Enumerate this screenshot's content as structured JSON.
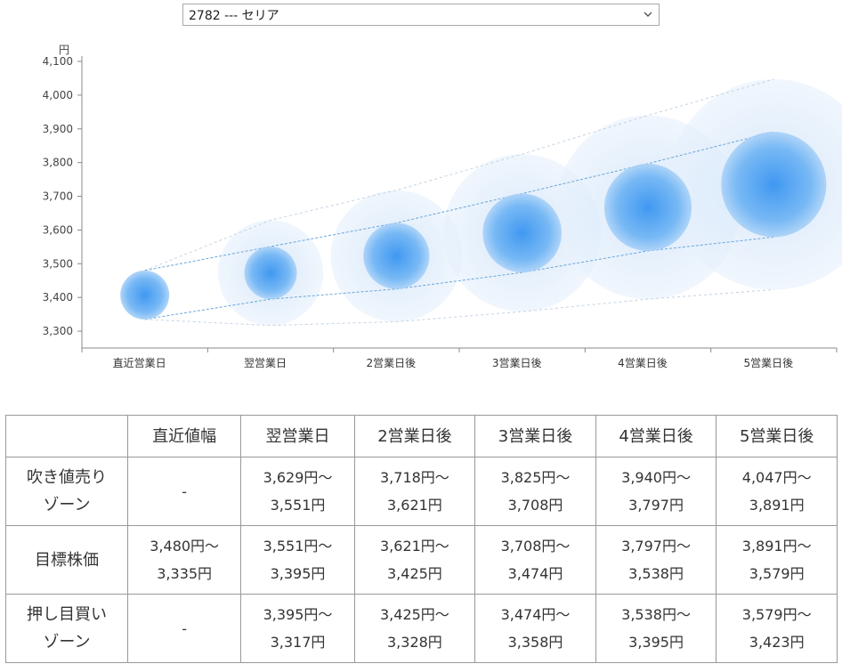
{
  "selector": {
    "value": "2782 --- セリア"
  },
  "chart_data": {
    "type": "bubble",
    "unit": "円",
    "ylim": [
      3250,
      4100
    ],
    "yticks": [
      3300,
      3400,
      3500,
      3600,
      3700,
      3800,
      3900,
      4000,
      4100
    ],
    "ytick_labels": [
      "3,300",
      "3,400",
      "3,500",
      "3,600",
      "3,700",
      "3,800",
      "3,900",
      "4,000",
      "4,100"
    ],
    "categories": [
      "直近営業日",
      "翌営業日",
      "2営業日後",
      "3営業日後",
      "4営業日後",
      "5営業日後"
    ],
    "center": [
      3407,
      3473,
      3523,
      3591,
      3667,
      3735
    ],
    "upper_band": [
      3480,
      3551,
      3621,
      3708,
      3797,
      3891
    ],
    "lower_band": [
      3335,
      3395,
      3425,
      3474,
      3538,
      3579
    ],
    "outer_upper": [
      3480,
      3629,
      3718,
      3825,
      3940,
      4047
    ],
    "outer_lower": [
      3335,
      3317,
      3328,
      3358,
      3395,
      3423
    ],
    "colors": {
      "core": "#5aa9f2",
      "halo": "#d9ebfb",
      "line": "#6aa6d9",
      "outer_line": "#c4d3e2"
    }
  },
  "table": {
    "headers": [
      "",
      "直近値幅",
      "翌営業日",
      "2営業日後",
      "3営業日後",
      "4営業日後",
      "5営業日後"
    ],
    "rows": [
      {
        "label": [
          "吹き値売り",
          "ゾーン"
        ],
        "cells": [
          [
            "-"
          ],
          [
            "3,629円～",
            "3,551円"
          ],
          [
            "3,718円～",
            "3,621円"
          ],
          [
            "3,825円～",
            "3,708円"
          ],
          [
            "3,940円～",
            "3,797円"
          ],
          [
            "4,047円～",
            "3,891円"
          ]
        ]
      },
      {
        "label": [
          "目標株価"
        ],
        "cells": [
          [
            "3,480円～",
            "3,335円"
          ],
          [
            "3,551円～",
            "3,395円"
          ],
          [
            "3,621円～",
            "3,425円"
          ],
          [
            "3,708円～",
            "3,474円"
          ],
          [
            "3,797円～",
            "3,538円"
          ],
          [
            "3,891円～",
            "3,579円"
          ]
        ]
      },
      {
        "label": [
          "押し目買い",
          "ゾーン"
        ],
        "cells": [
          [
            "-"
          ],
          [
            "3,395円～",
            "3,317円"
          ],
          [
            "3,425円～",
            "3,328円"
          ],
          [
            "3,474円～",
            "3,358円"
          ],
          [
            "3,538円～",
            "3,395円"
          ],
          [
            "3,579円～",
            "3,423円"
          ]
        ]
      }
    ]
  }
}
